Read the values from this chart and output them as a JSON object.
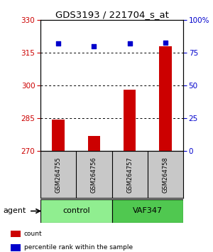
{
  "title": "GDS3193 / 221704_s_at",
  "samples": [
    "GSM264755",
    "GSM264756",
    "GSM264757",
    "GSM264758"
  ],
  "bar_values": [
    284.5,
    277.0,
    298.0,
    318.0
  ],
  "bar_baseline": 270,
  "bar_color": "#cc0000",
  "dot_values_pct": [
    82,
    80,
    82,
    83
  ],
  "dot_color": "#0000cc",
  "left_ylim": [
    270,
    330
  ],
  "left_yticks": [
    270,
    285,
    300,
    315,
    330
  ],
  "right_ylim": [
    0,
    100
  ],
  "right_yticks": [
    0,
    25,
    50,
    75,
    100
  ],
  "right_yticklabels": [
    "0",
    "25",
    "50",
    "75",
    "100%"
  ],
  "left_tick_color": "#cc0000",
  "right_tick_color": "#0000cc",
  "groups": [
    {
      "label": "control",
      "samples": [
        0,
        1
      ],
      "color": "#90ee90"
    },
    {
      "label": "VAF347",
      "samples": [
        2,
        3
      ],
      "color": "#50c850"
    }
  ],
  "group_label": "agent",
  "background_color": "#ffffff",
  "gridline_color": "#000000",
  "bar_width": 0.35,
  "sample_box_color": "#c8c8c8",
  "legend_items": [
    {
      "label": "count",
      "color": "#cc0000"
    },
    {
      "label": "percentile rank within the sample",
      "color": "#0000cc"
    }
  ]
}
